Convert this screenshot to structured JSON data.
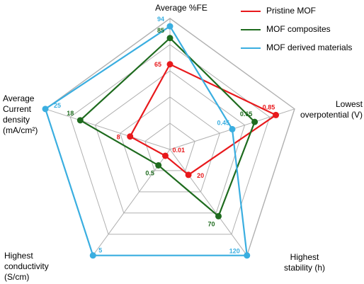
{
  "chart_data": {
    "type": "radar",
    "axes": [
      {
        "label": "Average %FE",
        "max": 100
      },
      {
        "label": "Lowest overpotential (V)",
        "max": 1.0
      },
      {
        "label": "Highest stability (h)",
        "max": 120
      },
      {
        "label": "Highest conductivity (S/cm)",
        "max": 5
      },
      {
        "label": "Average Current density (mA/cm²)",
        "max": 25
      }
    ],
    "rings": 5,
    "series": [
      {
        "name": "Pristine MOF",
        "color": "#e8191c",
        "values": [
          65,
          0.85,
          20,
          0.01,
          8
        ],
        "labels": [
          "65",
          "0.85",
          "20",
          "0.01",
          "8"
        ],
        "plot_fraction": [
          0.65,
          0.85,
          0.24,
          0.06,
          0.32
        ]
      },
      {
        "name": "MOF composites",
        "color": "#1e6b1e",
        "values": [
          85,
          0.65,
          70,
          0.5,
          18
        ],
        "labels": [
          "85",
          "0.65",
          "70",
          "0.5",
          "18"
        ],
        "plot_fraction": [
          0.85,
          0.68,
          0.63,
          0.15,
          0.72
        ]
      },
      {
        "name": "MOF derived materials",
        "color": "#3aaee0",
        "values": [
          94,
          0.45,
          120,
          5,
          25
        ],
        "labels": [
          "94",
          "0.45",
          "120",
          "5",
          "25"
        ],
        "plot_fraction": [
          0.94,
          0.5,
          1.0,
          1.0,
          1.0
        ]
      }
    ],
    "legend_placement": "top-right"
  },
  "axis_label_lines": [
    [
      "Average %FE"
    ],
    [
      "Lowest",
      "overpotential (V)"
    ],
    [
      "Highest",
      "stability (h)"
    ],
    [
      "Highest",
      "conductivity",
      "(S/cm)"
    ],
    [
      "Average",
      "Current",
      "density",
      "(mA/cm²)"
    ]
  ],
  "colors": {
    "grid": "#b0b0b0",
    "text": "#000000"
  }
}
